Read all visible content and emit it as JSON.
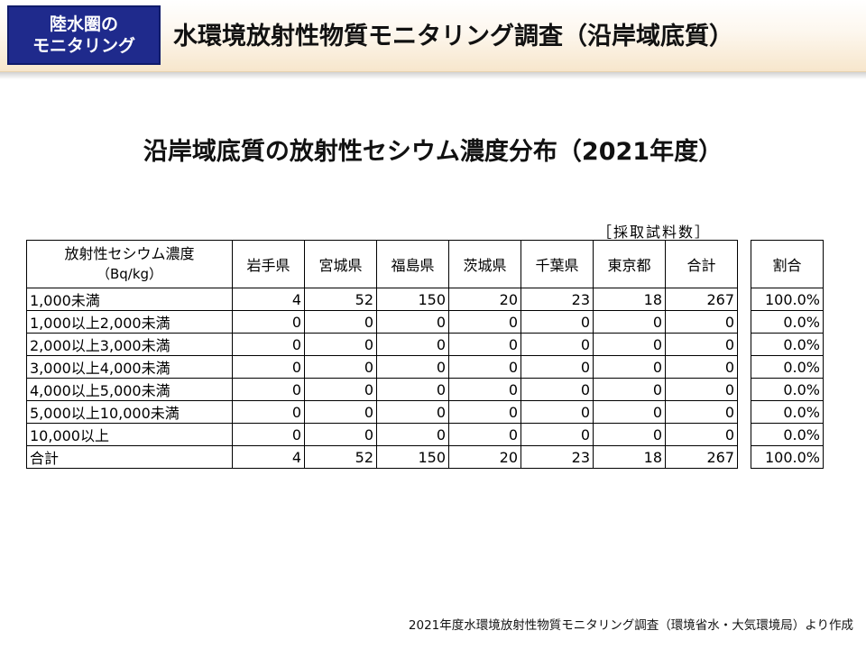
{
  "header": {
    "badge_line1": "陸水圏の",
    "badge_line2": "モニタリング",
    "title": "水環境放射性物質モニタリング調査（沿岸域底質）"
  },
  "main_title": "沿岸域底質の放射性セシウム濃度分布（2021年度）",
  "unit_note": "［採取試料数］",
  "table": {
    "header_label_line1": "放射性セシウム濃度",
    "header_label_line2": "（Bq/kg）",
    "columns": [
      "岩手県",
      "宮城県",
      "福島県",
      "茨城県",
      "千葉県",
      "東京都",
      "合計"
    ],
    "ratio_header": "割合",
    "rows": [
      {
        "label": "1,000未満",
        "values": [
          "4",
          "52",
          "150",
          "20",
          "23",
          "18",
          "267"
        ],
        "ratio": "100.0%"
      },
      {
        "label": "1,000以上2,000未満",
        "values": [
          "0",
          "0",
          "0",
          "0",
          "0",
          "0",
          "0"
        ],
        "ratio": "0.0%"
      },
      {
        "label": "2,000以上3,000未満",
        "values": [
          "0",
          "0",
          "0",
          "0",
          "0",
          "0",
          "0"
        ],
        "ratio": "0.0%"
      },
      {
        "label": "3,000以上4,000未満",
        "values": [
          "0",
          "0",
          "0",
          "0",
          "0",
          "0",
          "0"
        ],
        "ratio": "0.0%"
      },
      {
        "label": "4,000以上5,000未満",
        "values": [
          "0",
          "0",
          "0",
          "0",
          "0",
          "0",
          "0"
        ],
        "ratio": "0.0%"
      },
      {
        "label": "5,000以上10,000未満",
        "values": [
          "0",
          "0",
          "0",
          "0",
          "0",
          "0",
          "0"
        ],
        "ratio": "0.0%"
      },
      {
        "label": "10,000以上",
        "values": [
          "0",
          "0",
          "0",
          "0",
          "0",
          "0",
          "0"
        ],
        "ratio": "0.0%"
      },
      {
        "label": "合計",
        "values": [
          "4",
          "52",
          "150",
          "20",
          "23",
          "18",
          "267"
        ],
        "ratio": "100.0%"
      }
    ]
  },
  "footer": "2021年度水環境放射性物質モニタリング調査（環境省水・大気環境局）より作成",
  "colors": {
    "badge_bg": "#1f2a8c",
    "header_gradient_end": "#f7e6cc"
  }
}
